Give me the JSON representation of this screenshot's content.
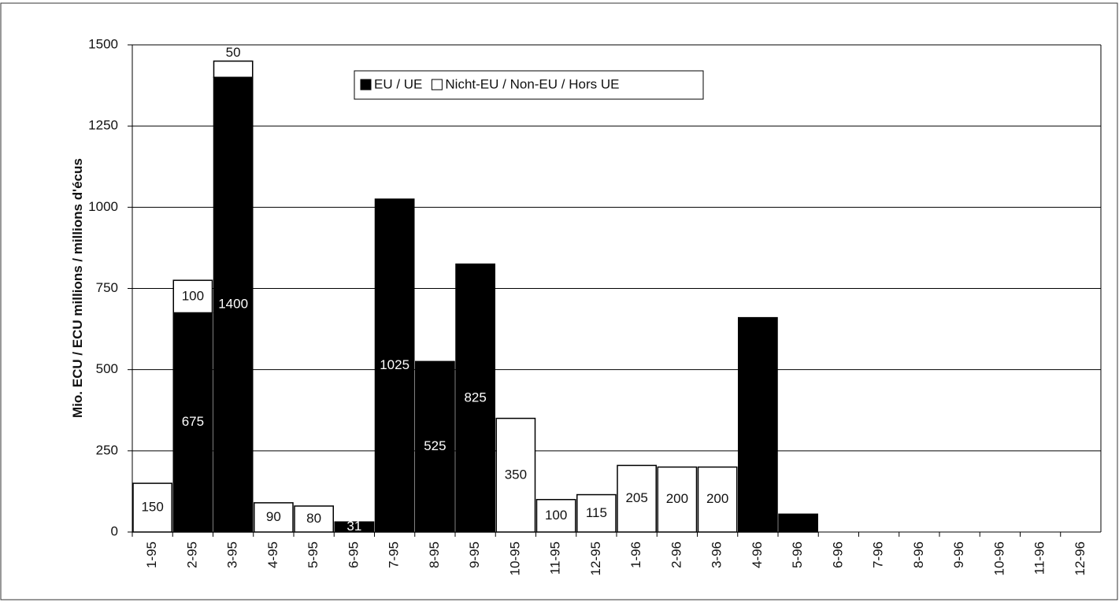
{
  "chart_data": {
    "type": "stacked_bar",
    "y_label": "Mio. ECU / ECU millions / millions d'écus",
    "categories": [
      "1-95",
      "2-95",
      "3-95",
      "4-95",
      "5-95",
      "6-95",
      "7-95",
      "8-95",
      "9-95",
      "10-95",
      "11-95",
      "12-95",
      "1-96",
      "2-96",
      "3-96",
      "4-96",
      "5-96",
      "6-96",
      "7-96",
      "8-96",
      "9-96",
      "10-96",
      "11-96",
      "12-96"
    ],
    "series": [
      {
        "name": "EU / UE",
        "color": "#000000",
        "values": [
          null,
          675,
          1400,
          null,
          null,
          31,
          1025,
          525,
          825,
          null,
          null,
          null,
          null,
          null,
          null,
          660,
          55,
          null,
          null,
          null,
          null,
          null,
          null,
          null
        ],
        "value_labels": [
          null,
          "675",
          "1400",
          null,
          null,
          "31",
          "1025",
          "525",
          "825",
          null,
          null,
          null,
          null,
          null,
          null,
          null,
          null,
          null,
          null,
          null,
          null,
          null,
          null,
          null
        ]
      },
      {
        "name": "Nicht-EU / Non-EU / Hors UE",
        "color": "#ffffff",
        "values": [
          150,
          100,
          50,
          90,
          80,
          null,
          null,
          null,
          null,
          350,
          100,
          115,
          205,
          200,
          200,
          null,
          null,
          null,
          null,
          null,
          null,
          null,
          null,
          null
        ],
        "value_labels": [
          "150",
          "100",
          "50",
          "90",
          "80",
          null,
          null,
          null,
          null,
          "350",
          "100",
          "115",
          "205",
          "200",
          "200",
          null,
          null,
          null,
          null,
          null,
          null,
          null,
          null,
          null
        ]
      }
    ],
    "ylim": [
      0,
      1500
    ],
    "yticks": [
      0,
      250,
      500,
      750,
      1000,
      1250,
      1500
    ],
    "grid": true
  }
}
